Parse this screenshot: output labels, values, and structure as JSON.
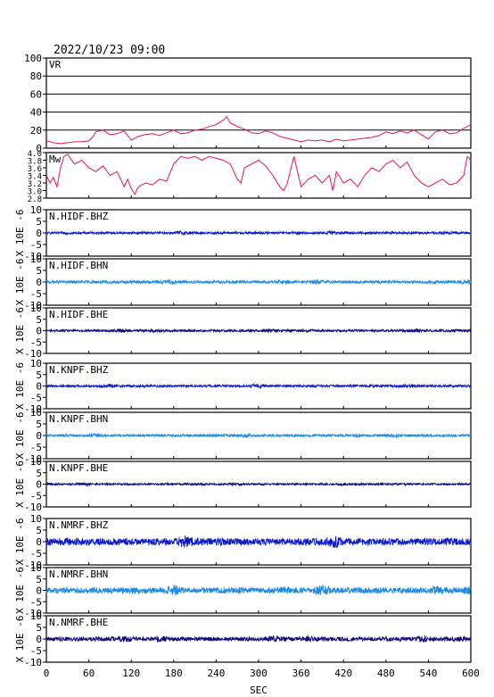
{
  "header": {
    "datetime": "2022/10/23 09:00"
  },
  "colors": {
    "axes": "#000000",
    "vr_line": "#e8174a",
    "mw_line": "#e8174a",
    "bhz": "#0a18c8",
    "bhn": "#1a8ae6",
    "bhe": "#0c0c78"
  },
  "chart_data": [
    {
      "type": "line",
      "panel": "VR",
      "title": "VR",
      "ylim": [
        0,
        100
      ],
      "yticks": [
        0,
        20,
        40,
        60,
        80,
        100
      ],
      "grid": true,
      "x": [
        0,
        10,
        20,
        30,
        40,
        50,
        60,
        65,
        70,
        80,
        90,
        100,
        110,
        120,
        130,
        140,
        150,
        160,
        170,
        180,
        190,
        200,
        210,
        220,
        230,
        240,
        250,
        255,
        260,
        270,
        280,
        290,
        300,
        310,
        320,
        330,
        340,
        350,
        360,
        370,
        380,
        390,
        400,
        410,
        420,
        430,
        440,
        450,
        460,
        470,
        480,
        490,
        500,
        510,
        520,
        530,
        540,
        550,
        560,
        570,
        580,
        590,
        600
      ],
      "values": [
        8,
        6,
        5,
        6,
        7,
        7,
        8,
        12,
        18,
        20,
        15,
        16,
        19,
        9,
        13,
        15,
        16,
        14,
        17,
        20,
        16,
        17,
        20,
        21,
        24,
        26,
        31,
        35,
        28,
        24,
        21,
        17,
        16,
        19,
        17,
        13,
        11,
        9,
        7,
        9,
        8,
        9,
        7,
        10,
        8,
        9,
        10,
        11,
        12,
        14,
        18,
        16,
        19,
        17,
        20,
        15,
        10,
        18,
        20,
        16,
        17,
        22,
        26
      ]
    },
    {
      "type": "line",
      "panel": "Mw",
      "title": "Mw",
      "ylim": [
        2.8,
        4.0
      ],
      "yticks": [
        2.8,
        3.0,
        3.2,
        3.4,
        3.6,
        3.8,
        4.0
      ],
      "ytick_labels": [
        "2.8",
        "3.0",
        "3.2",
        "3.4",
        "3.6",
        "3.8",
        "4.0"
      ],
      "grid": false,
      "x": [
        0,
        5,
        10,
        15,
        20,
        25,
        30,
        40,
        50,
        60,
        70,
        80,
        90,
        100,
        110,
        115,
        120,
        125,
        130,
        140,
        150,
        160,
        170,
        180,
        190,
        200,
        210,
        220,
        230,
        240,
        250,
        260,
        270,
        275,
        280,
        290,
        300,
        310,
        320,
        330,
        335,
        340,
        350,
        360,
        370,
        380,
        390,
        400,
        405,
        410,
        420,
        430,
        440,
        450,
        460,
        470,
        480,
        490,
        500,
        510,
        520,
        530,
        540,
        550,
        560,
        570,
        580,
        590,
        595,
        600
      ],
      "values": [
        3.4,
        3.2,
        3.35,
        3.1,
        3.6,
        3.9,
        3.95,
        3.7,
        3.8,
        3.6,
        3.5,
        3.65,
        3.4,
        3.5,
        3.1,
        3.3,
        3.05,
        2.9,
        3.1,
        3.2,
        3.15,
        3.3,
        3.25,
        3.7,
        3.9,
        3.85,
        3.9,
        3.8,
        3.9,
        3.85,
        3.8,
        3.7,
        3.3,
        3.2,
        3.6,
        3.7,
        3.8,
        3.65,
        3.4,
        3.1,
        3.0,
        3.15,
        3.9,
        3.1,
        3.3,
        3.4,
        3.2,
        3.4,
        3.0,
        3.5,
        3.2,
        3.3,
        3.1,
        3.4,
        3.6,
        3.5,
        3.7,
        3.8,
        3.6,
        3.75,
        3.4,
        3.2,
        3.1,
        3.2,
        3.3,
        3.15,
        3.2,
        3.4,
        3.9,
        3.8
      ]
    },
    {
      "type": "line",
      "panel": "N.HIDF.BHZ",
      "title": "N.HIDF.BHZ",
      "series_color": "bhz",
      "ylim": [
        -10,
        10
      ],
      "yticks": [
        -10,
        -5,
        0,
        5,
        10
      ],
      "ylabel": "X 10E -6",
      "amplitude": 0.5
    },
    {
      "type": "line",
      "panel": "N.HIDF.BHN",
      "title": "N.HIDF.BHN",
      "series_color": "bhn",
      "ylim": [
        -10,
        10
      ],
      "yticks": [
        -10,
        -5,
        0,
        5,
        10
      ],
      "ylabel": "X 10E -6",
      "amplitude": 0.6
    },
    {
      "type": "line",
      "panel": "N.HIDF.BHE",
      "title": "N.HIDF.BHE",
      "series_color": "bhe",
      "ylim": [
        -10,
        10
      ],
      "yticks": [
        -10,
        -5,
        0,
        5,
        10
      ],
      "ylabel": "X 10E -6",
      "amplitude": 0.5
    },
    {
      "type": "line",
      "panel": "N.KNPF.BHZ",
      "title": "N.KNPF.BHZ",
      "series_color": "bhz",
      "ylim": [
        -10,
        10
      ],
      "yticks": [
        -10,
        -5,
        0,
        5,
        10
      ],
      "ylabel": "X 10E -6",
      "amplitude": 0.5
    },
    {
      "type": "line",
      "panel": "N.KNPF.BHN",
      "title": "N.KNPF.BHN",
      "series_color": "bhn",
      "ylim": [
        -10,
        10
      ],
      "yticks": [
        -10,
        -5,
        0,
        5,
        10
      ],
      "ylabel": "X 10E -6",
      "amplitude": 0.5
    },
    {
      "type": "line",
      "panel": "N.KNPF.BHE",
      "title": "N.KNPF.BHE",
      "series_color": "bhe",
      "ylim": [
        -10,
        10
      ],
      "yticks": [
        -10,
        -5,
        0,
        5,
        10
      ],
      "ylabel": "X 10E -6",
      "amplitude": 0.4
    },
    {
      "type": "line",
      "panel": "N.NMRF.BHZ",
      "title": "N.NMRF.BHZ",
      "series_color": "bhz",
      "ylim": [
        -10,
        10
      ],
      "yticks": [
        -10,
        -5,
        0,
        5,
        10
      ],
      "ylabel": "X 10E -6",
      "amplitude": 1.5
    },
    {
      "type": "line",
      "panel": "N.NMRF.BHN",
      "title": "N.NMRF.BHN",
      "series_color": "bhn",
      "ylim": [
        -10,
        10
      ],
      "yticks": [
        -10,
        -5,
        0,
        5,
        10
      ],
      "ylabel": "X 10E -6",
      "amplitude": 1.3
    },
    {
      "type": "line",
      "panel": "N.NMRF.BHE",
      "title": "N.NMRF.BHE",
      "series_color": "bhe",
      "ylim": [
        -10,
        10
      ],
      "yticks": [
        -10,
        -5,
        0,
        5,
        10
      ],
      "ylabel": "X 10E -6",
      "amplitude": 0.9
    }
  ],
  "x_axis": {
    "label": "SEC",
    "xlim": [
      0,
      600
    ],
    "ticks": [
      0,
      60,
      120,
      180,
      240,
      300,
      360,
      420,
      480,
      540,
      600
    ]
  }
}
